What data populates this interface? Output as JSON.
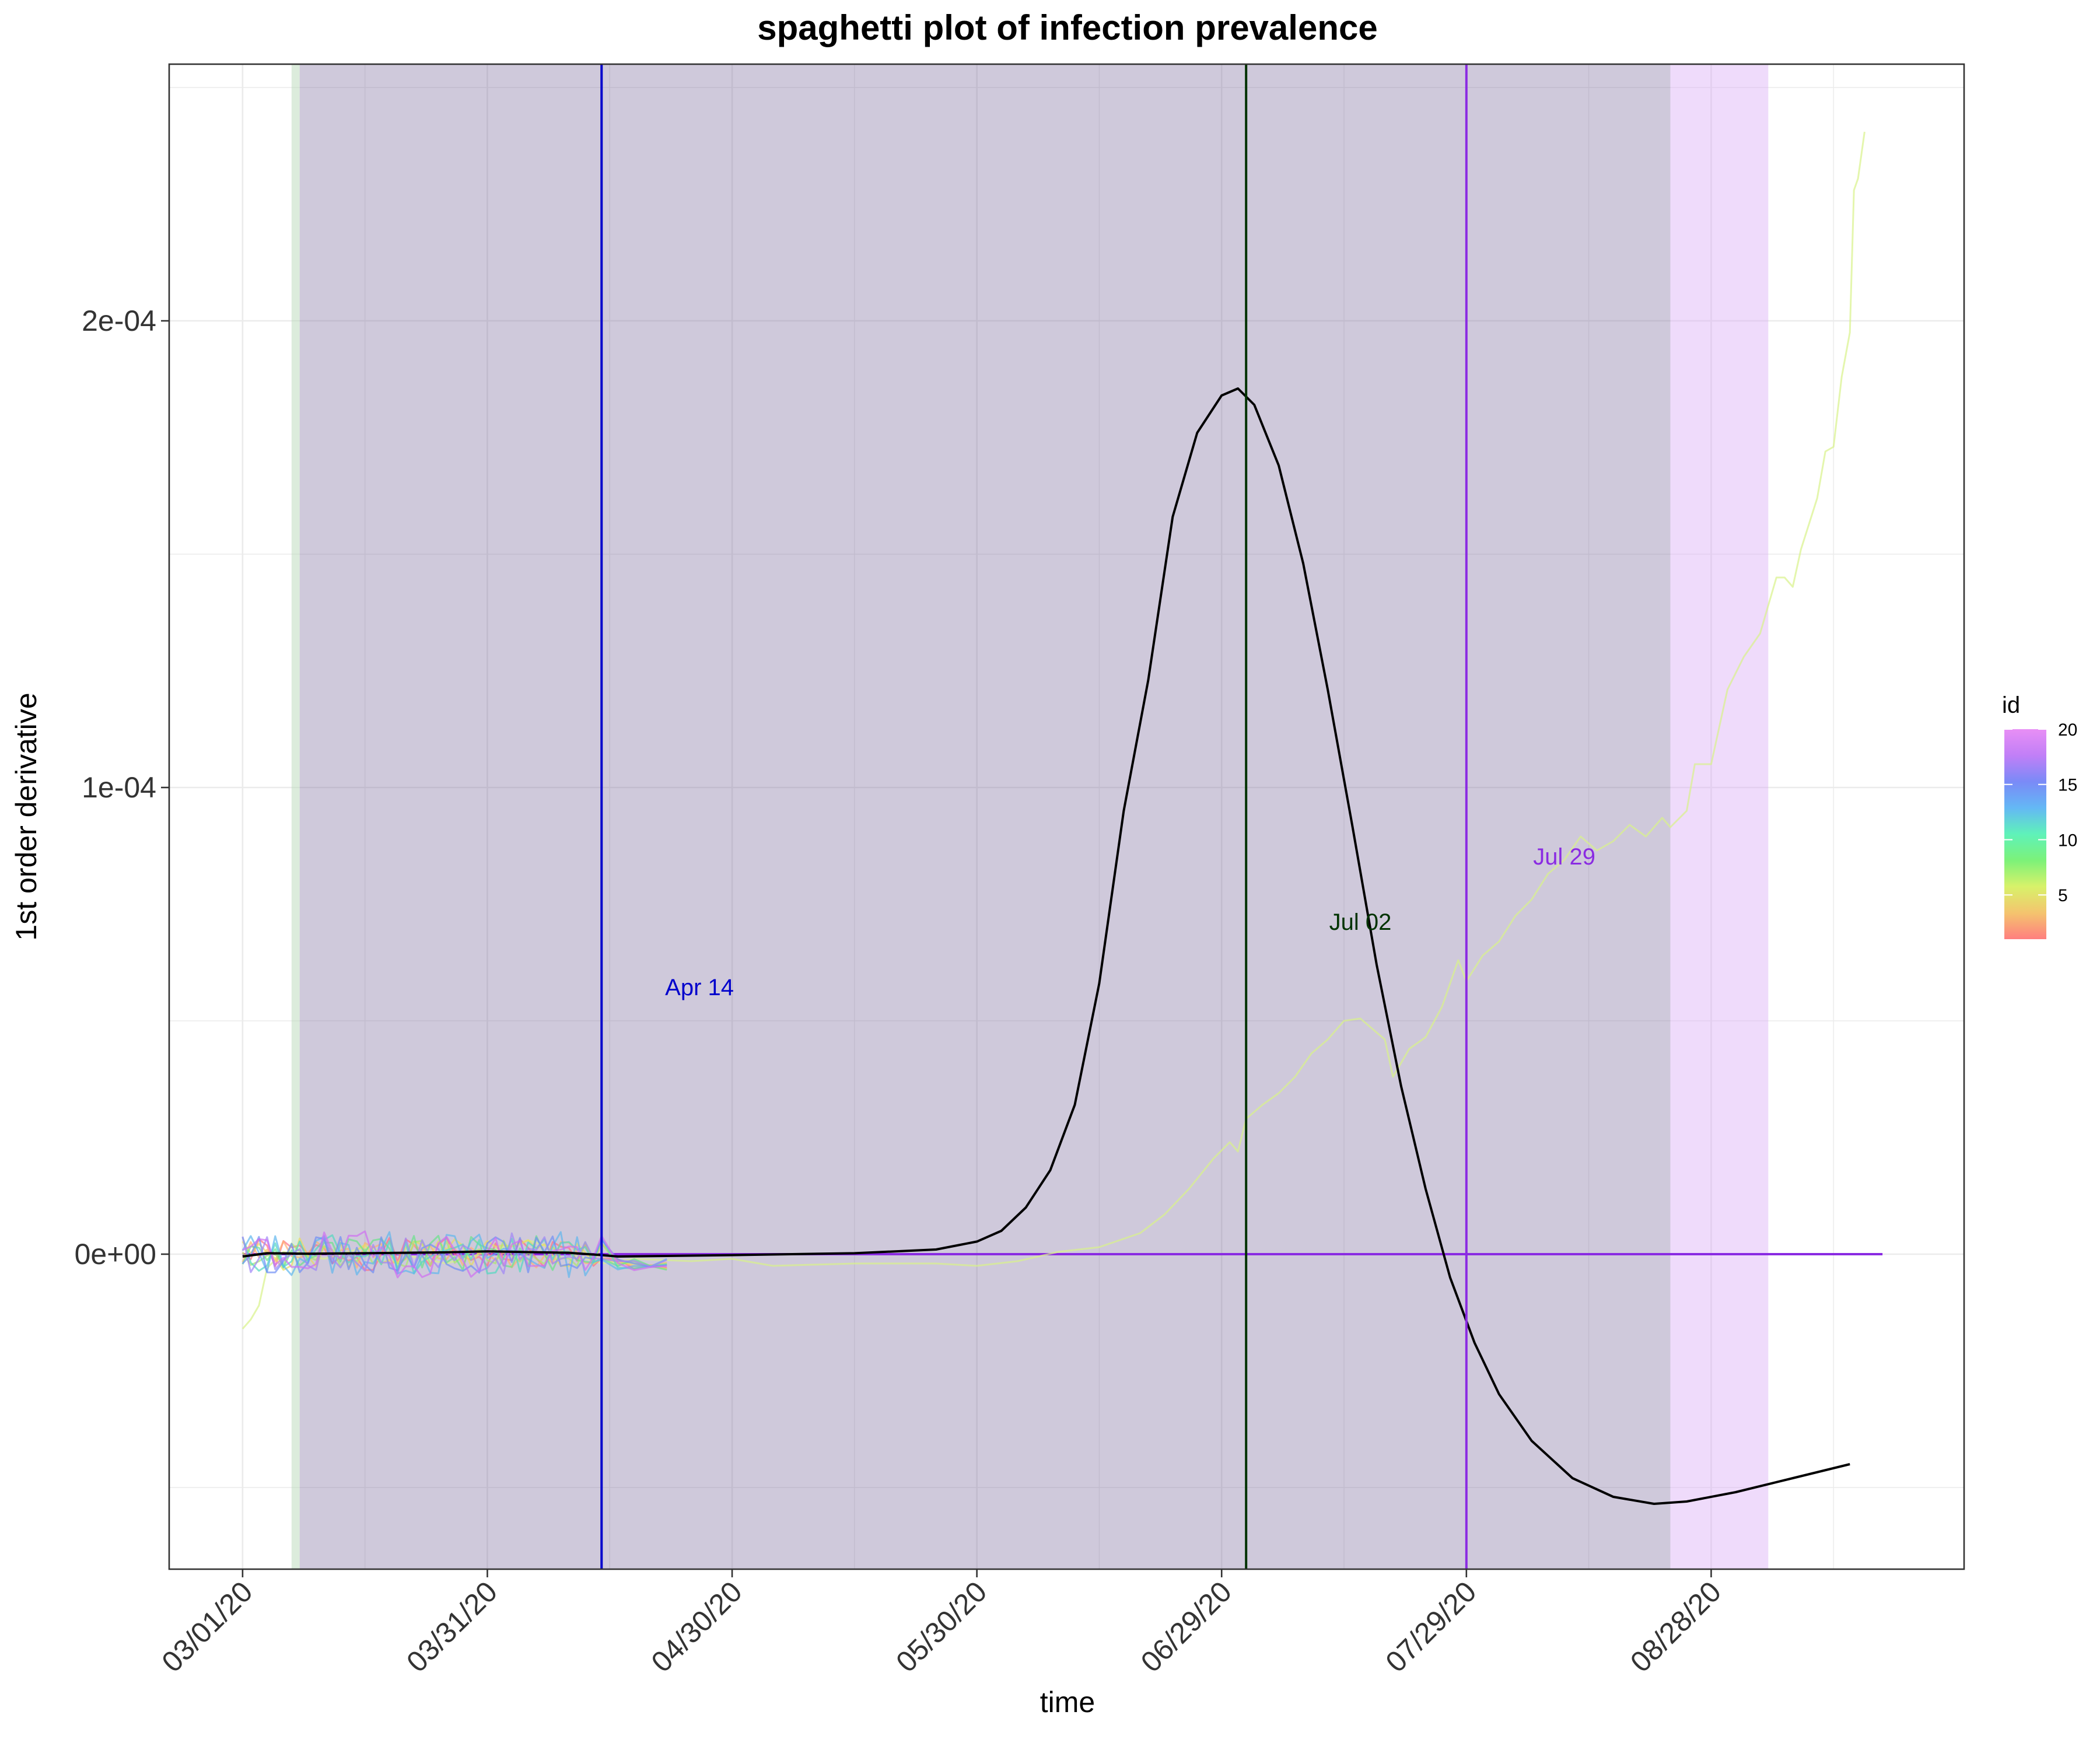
{
  "chart_data": {
    "type": "line",
    "title": "spaghetti plot of infection prevalence",
    "xlabel": "time",
    "ylabel": "1st order derivative",
    "x_start_date": "2020-03-01",
    "xlim": [
      "2020-02-21",
      "2020-09-28"
    ],
    "x_ticks": [
      {
        "date": "2020-03-01",
        "label": "03/01/20"
      },
      {
        "date": "2020-03-31",
        "label": "03/31/20"
      },
      {
        "date": "2020-04-30",
        "label": "04/30/20"
      },
      {
        "date": "2020-05-30",
        "label": "05/30/20"
      },
      {
        "date": "2020-06-29",
        "label": "06/29/20"
      },
      {
        "date": "2020-07-29",
        "label": "07/29/20"
      },
      {
        "date": "2020-08-28",
        "label": "08/28/20"
      }
    ],
    "ylim": [
      -6.75e-05,
      0.000255
    ],
    "y_ticks": [
      {
        "value": 0,
        "label": "0e+00"
      },
      {
        "value": 0.0001,
        "label": "1e-04"
      },
      {
        "value": 0.0002,
        "label": "2e-04"
      }
    ],
    "grid": true,
    "shaded_bands": [
      {
        "start": "2020-03-07",
        "end": "2020-03-08",
        "color": "#b9d9b9",
        "opacity": 0.5
      },
      {
        "start": "2020-03-08",
        "end": "2020-08-23",
        "color": "#7b6a9b",
        "opacity": 0.36
      },
      {
        "start": "2020-08-23",
        "end": "2020-09-04",
        "color": "#d9a9f5",
        "opacity": 0.42
      }
    ],
    "vlines": [
      {
        "date": "2020-04-14",
        "color": "#0000cc",
        "label": "Apr 14",
        "label_date": "2020-04-26",
        "label_y": 5.55e-05
      },
      {
        "date": "2020-07-02",
        "color": "#003300",
        "label": "Jul 02",
        "label_date": "2020-07-16",
        "label_y": 6.95e-05
      },
      {
        "date": "2020-07-29",
        "color": "#8a2be2",
        "label": "Jul 29",
        "label_date": "2020-08-10",
        "label_y": 8.35e-05
      }
    ],
    "hline": {
      "value": 0,
      "color": "#8a2be2",
      "from": "2020-03-01",
      "to": "2020-09-18"
    },
    "series": [
      {
        "role": "mean",
        "color": "#000000",
        "points": [
          [
            0,
            -5e-07
          ],
          [
            3,
            2e-07
          ],
          [
            8,
            1e-07
          ],
          [
            15,
            2e-07
          ],
          [
            25,
            4e-07
          ],
          [
            30,
            6e-07
          ],
          [
            40,
            3e-07
          ],
          [
            44,
            -2e-07
          ],
          [
            46,
            -5e-07
          ],
          [
            60,
            -2e-07
          ],
          [
            75,
            2e-07
          ],
          [
            85,
            1e-06
          ],
          [
            90,
            2.7e-06
          ],
          [
            93,
            5e-06
          ],
          [
            96,
            1e-05
          ],
          [
            99,
            1.8e-05
          ],
          [
            102,
            3.2e-05
          ],
          [
            105,
            5.8e-05
          ],
          [
            108,
            9.5e-05
          ],
          [
            111,
            0.000123
          ],
          [
            114,
            0.000158
          ],
          [
            117,
            0.000176
          ],
          [
            120,
            0.000184
          ],
          [
            122,
            0.0001855
          ],
          [
            124,
            0.000182
          ],
          [
            127,
            0.000169
          ],
          [
            130,
            0.000148
          ],
          [
            133,
            0.000121
          ],
          [
            136,
            9.2e-05
          ],
          [
            139,
            6.2e-05
          ],
          [
            142,
            3.6e-05
          ],
          [
            145,
            1.4e-05
          ],
          [
            148,
            -5e-06
          ],
          [
            151,
            -1.9e-05
          ],
          [
            154,
            -3e-05
          ],
          [
            158,
            -4e-05
          ],
          [
            163,
            -4.8e-05
          ],
          [
            168,
            -5.2e-05
          ],
          [
            173,
            -5.35e-05
          ],
          [
            177,
            -5.3e-05
          ],
          [
            183,
            -5.1e-05
          ],
          [
            190,
            -4.8e-05
          ],
          [
            197,
            -4.5e-05
          ]
        ]
      },
      {
        "role": "id-4",
        "color": "#d8f28a",
        "points": [
          [
            0,
            -1.6e-05
          ],
          [
            1,
            -1.4e-05
          ],
          [
            2,
            -1.1e-05
          ],
          [
            3,
            -3e-06
          ],
          [
            5,
            5e-07
          ],
          [
            10,
            -1e-06
          ],
          [
            15,
            1.5e-06
          ],
          [
            25,
            -2e-06
          ],
          [
            35,
            3e-06
          ],
          [
            44,
            -2e-06
          ],
          [
            48,
            -1e-06
          ],
          [
            55,
            -1.5e-06
          ],
          [
            60,
            -1e-06
          ],
          [
            65,
            -2.5e-06
          ],
          [
            75,
            -2e-06
          ],
          [
            85,
            -2e-06
          ],
          [
            90,
            -2.5e-06
          ],
          [
            95,
            -1.5e-06
          ],
          [
            100,
            5e-07
          ],
          [
            105,
            1.5e-06
          ],
          [
            110,
            4.5e-06
          ],
          [
            113,
            8.5e-06
          ],
          [
            116,
            1.4e-05
          ],
          [
            119,
            2.05e-05
          ],
          [
            121,
            2.4e-05
          ],
          [
            122,
            2.2e-05
          ],
          [
            123,
            2.9e-05
          ],
          [
            125,
            3.2e-05
          ],
          [
            127,
            3.45e-05
          ],
          [
            129,
            3.8e-05
          ],
          [
            131,
            4.3e-05
          ],
          [
            133,
            4.6e-05
          ],
          [
            135,
            5e-05
          ],
          [
            137,
            5.05e-05
          ],
          [
            140,
            4.6e-05
          ],
          [
            141,
            3.8e-05
          ],
          [
            143,
            4.4e-05
          ],
          [
            145,
            4.65e-05
          ],
          [
            147,
            5.3e-05
          ],
          [
            149,
            6.3e-05
          ],
          [
            150,
            5.85e-05
          ],
          [
            152,
            6.4e-05
          ],
          [
            154,
            6.7e-05
          ],
          [
            156,
            7.25e-05
          ],
          [
            158,
            7.6e-05
          ],
          [
            160,
            8.15e-05
          ],
          [
            162,
            8.45e-05
          ],
          [
            164,
            8.95e-05
          ],
          [
            166,
            8.65e-05
          ],
          [
            168,
            8.85e-05
          ],
          [
            170,
            9.2e-05
          ],
          [
            172,
            8.95e-05
          ],
          [
            174,
            9.35e-05
          ],
          [
            175,
            9.15e-05
          ],
          [
            177,
            9.5e-05
          ],
          [
            178,
            0.000105
          ],
          [
            180,
            0.000105
          ],
          [
            182,
            0.000121
          ],
          [
            184,
            0.000128
          ],
          [
            186,
            0.000133
          ],
          [
            188,
            0.000145
          ],
          [
            189,
            0.000145
          ],
          [
            190,
            0.000143
          ],
          [
            191,
            0.000151
          ],
          [
            193,
            0.000162
          ],
          [
            194,
            0.000172
          ],
          [
            195,
            0.000173
          ],
          [
            196,
            0.000188
          ],
          [
            197,
            0.0001975
          ],
          [
            197.5,
            0.000228
          ],
          [
            198,
            0.0002305
          ],
          [
            198.8,
            0.0002405
          ]
        ]
      },
      {
        "role": "id-1",
        "color": "#ff6f86",
        "amp": 3.5e-06,
        "seed": 1
      },
      {
        "role": "id-3",
        "color": "#ffb070",
        "amp": 3e-06,
        "seed": 3
      },
      {
        "role": "id-5",
        "color": "#e8dd60",
        "amp": 3.5e-06,
        "seed": 5
      },
      {
        "role": "id-7",
        "color": "#a9e86e",
        "amp": 3e-06,
        "seed": 7
      },
      {
        "role": "id-9",
        "color": "#69e28a",
        "amp": 4e-06,
        "seed": 9
      },
      {
        "role": "id-11",
        "color": "#52d9c0",
        "amp": 4.5e-06,
        "seed": 11
      },
      {
        "role": "id-13",
        "color": "#5fb7ee",
        "amp": 5e-06,
        "seed": 13
      },
      {
        "role": "id-15",
        "color": "#6f8ff5",
        "amp": 4e-06,
        "seed": 15
      },
      {
        "role": "id-17",
        "color": "#9f86f7",
        "amp": 4.5e-06,
        "seed": 17
      },
      {
        "role": "id-19",
        "color": "#cf6ff2",
        "amp": 5e-06,
        "seed": 19
      }
    ],
    "legend": {
      "title": "id",
      "position": "right",
      "type": "colorbar",
      "ticks": [
        5,
        10,
        15,
        20
      ],
      "range": [
        1,
        20
      ],
      "colors": [
        "#ff7f7f",
        "#f4c46e",
        "#d8f26a",
        "#7cf279",
        "#5ff2b9",
        "#64b8f5",
        "#7a8af7",
        "#c17ff7",
        "#e88ff5"
      ]
    }
  }
}
